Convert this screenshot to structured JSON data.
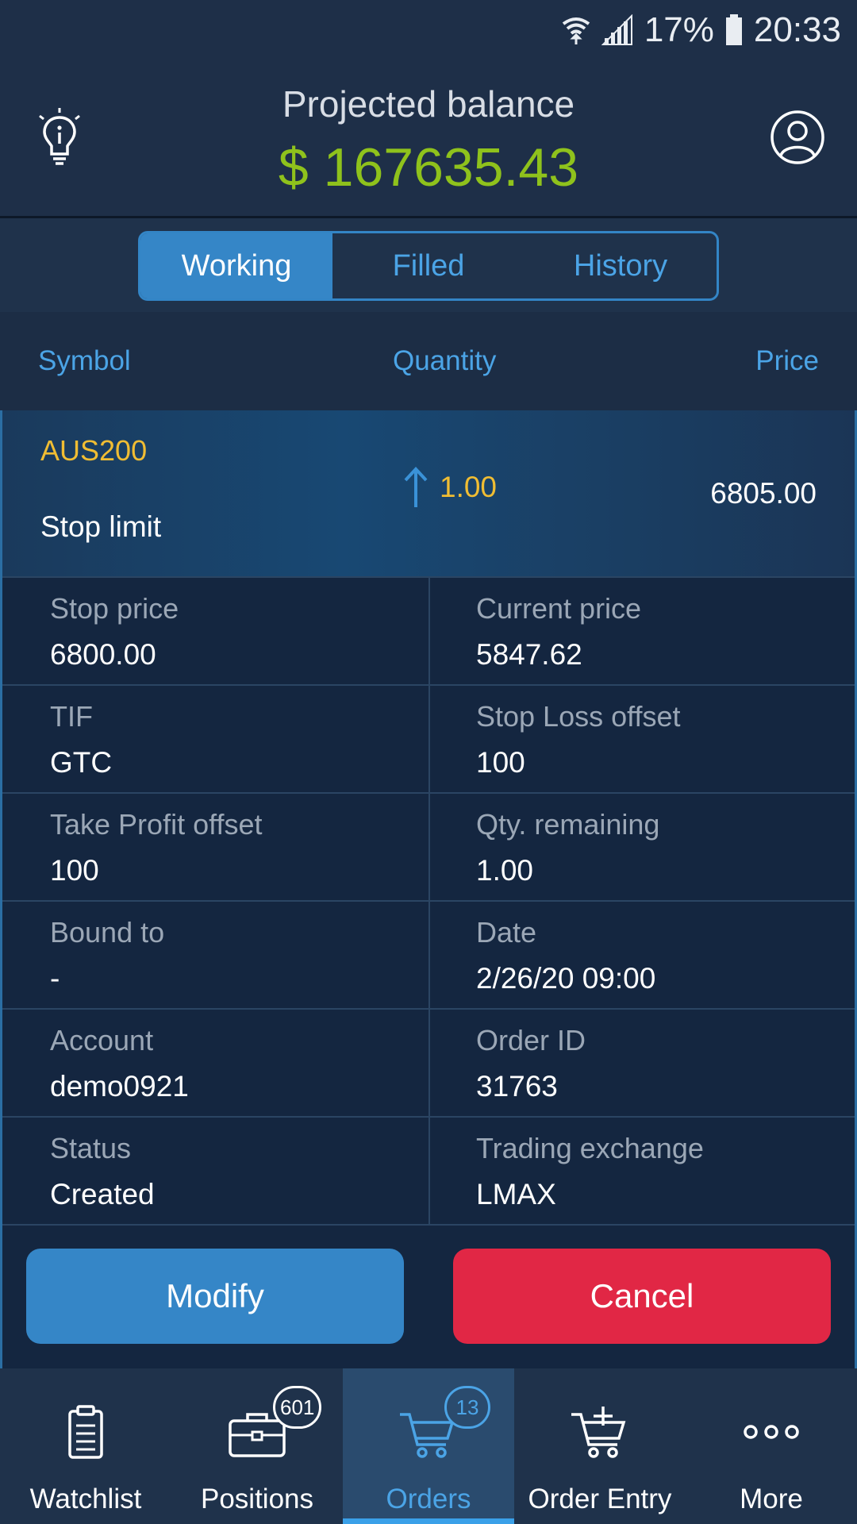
{
  "status_bar": {
    "battery": "17%",
    "time": "20:33",
    "icons": [
      "wifi-icon",
      "signal-icon",
      "battery-icon"
    ]
  },
  "header": {
    "balance_label": "Projected balance",
    "balance_value": "$ 167635.43",
    "left_icon": "lightbulb-info-icon",
    "right_icon": "profile-icon"
  },
  "tabs": [
    {
      "label": "Working",
      "active": true
    },
    {
      "label": "Filled",
      "active": false
    },
    {
      "label": "History",
      "active": false
    }
  ],
  "columns": {
    "symbol": "Symbol",
    "quantity": "Quantity",
    "price": "Price"
  },
  "order": {
    "symbol": "AUS200",
    "type": "Stop limit",
    "side_icon": "arrow-up-icon",
    "quantity": "1.00",
    "price": "6805.00",
    "details": [
      {
        "label": "Stop price",
        "value": "6800.00"
      },
      {
        "label": "Current price",
        "value": "5847.62"
      },
      {
        "label": "TIF",
        "value": "GTC"
      },
      {
        "label": "Stop Loss offset",
        "value": "100"
      },
      {
        "label": "Take Profit offset",
        "value": "100"
      },
      {
        "label": "Qty. remaining",
        "value": "1.00"
      },
      {
        "label": "Bound to",
        "value": "-"
      },
      {
        "label": "Date",
        "value": "2/26/20 09:00"
      },
      {
        "label": "Account",
        "value": "demo0921"
      },
      {
        "label": "Order ID",
        "value": "31763"
      },
      {
        "label": "Status",
        "value": "Created"
      },
      {
        "label": "Trading exchange",
        "value": "LMAX"
      }
    ]
  },
  "actions": {
    "modify": "Modify",
    "cancel": "Cancel"
  },
  "bottom_nav": [
    {
      "label": "Watchlist",
      "icon": "clipboard-icon",
      "badge": null,
      "active": false
    },
    {
      "label": "Positions",
      "icon": "briefcase-icon",
      "badge": "601",
      "active": false
    },
    {
      "label": "Orders",
      "icon": "cart-icon",
      "badge": "13",
      "active": true
    },
    {
      "label": "Order Entry",
      "icon": "cart-add-icon",
      "badge": null,
      "active": false
    },
    {
      "label": "More",
      "icon": "more-dots-icon",
      "badge": null,
      "active": false
    }
  ],
  "colors": {
    "background": "#1e2f48",
    "accent": "#3586c7",
    "balance_green": "#8fc21c",
    "symbol_yellow": "#f0bd33",
    "cancel_red": "#e12745"
  }
}
